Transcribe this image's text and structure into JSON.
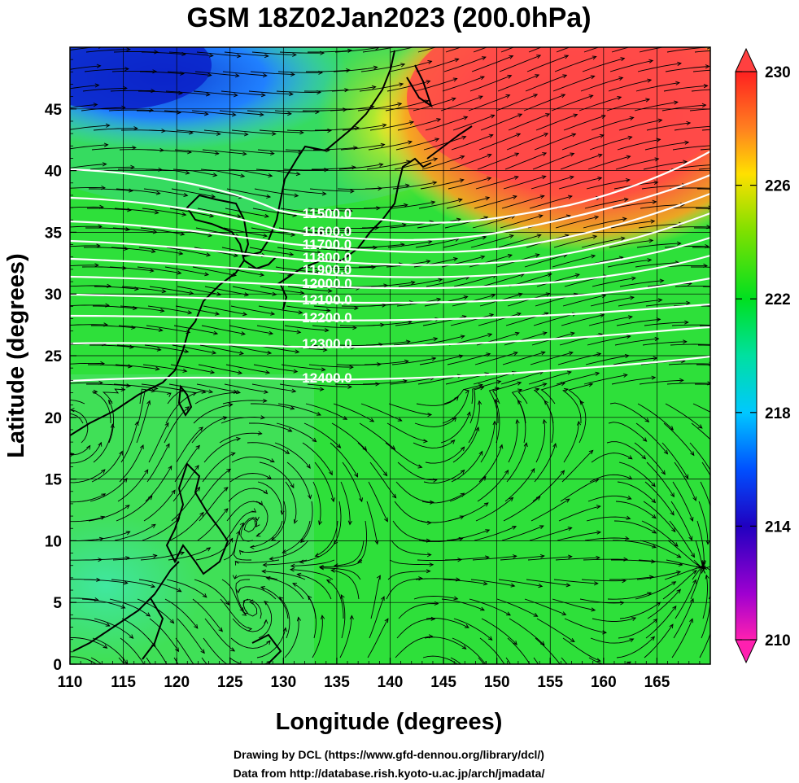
{
  "title": "GSM 18Z02Jan2023 (200.0hPa)",
  "x_axis": {
    "label": "Longitude (degrees)",
    "range": [
      110,
      170
    ],
    "ticks": [
      "110",
      "115",
      "120",
      "125",
      "130",
      "135",
      "140",
      "145",
      "150",
      "155",
      "160",
      "165"
    ]
  },
  "y_axis": {
    "label": "Latitude  (degrees)",
    "range": [
      0,
      50
    ],
    "ticks": [
      "0",
      "5",
      "10",
      "15",
      "20",
      "25",
      "30",
      "35",
      "40",
      "45"
    ]
  },
  "colorbar": {
    "range": [
      210,
      230
    ],
    "ticks": [
      "210",
      "214",
      "218",
      "222",
      "226",
      "230"
    ]
  },
  "chart_data": {
    "type": "heatmap",
    "field": "temperature at 200.0hPa",
    "contours": [
      {
        "label": "11500.0"
      },
      {
        "label": "11600.0"
      },
      {
        "label": "11700.0"
      },
      {
        "label": "11800.0"
      },
      {
        "label": "11900.0"
      },
      {
        "label": "12000.0"
      },
      {
        "label": "12100.0"
      },
      {
        "label": "12200.0"
      },
      {
        "label": "12300.0"
      },
      {
        "label": "12400.0"
      }
    ],
    "overlay": [
      "coastlines",
      "streamlines",
      "lat-lon grid"
    ]
  },
  "credits": [
    "Drawing by DCL (https://www.gfd-dennou.org/library/dcl/)",
    "Data from http://database.rish.kyoto-u.ac.jp/arch/jmadata/"
  ]
}
